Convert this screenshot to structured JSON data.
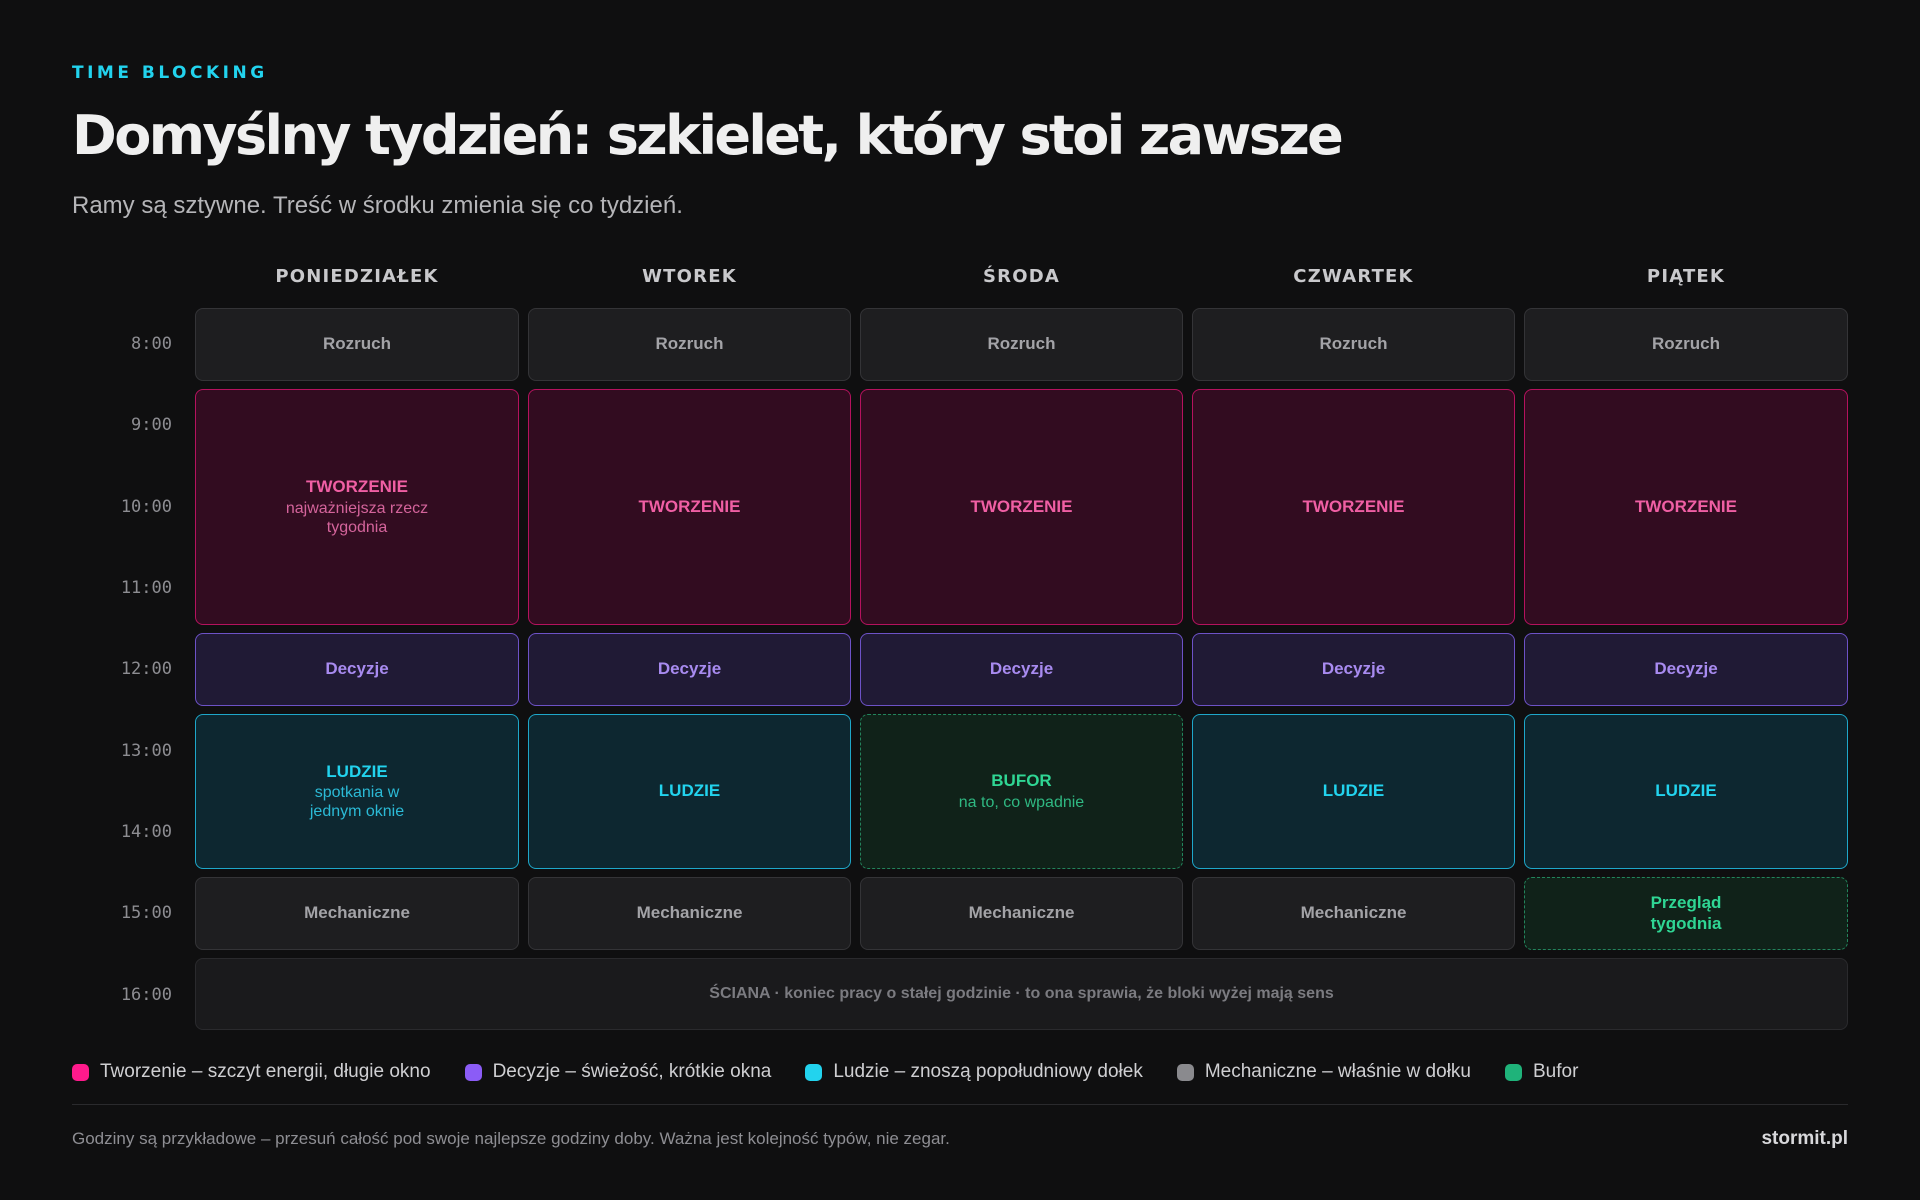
{
  "header": {
    "eyebrow": "TIME BLOCKING",
    "title": "Domyślny tydzień: szkielet, który stoi zawsze",
    "subtitle": "Ramy są sztywne. Treść w środku zmienia się co tydzień."
  },
  "days": [
    "PONIEDZIAŁEK",
    "WTOREK",
    "ŚRODA",
    "CZWARTEK",
    "PIĄTEK"
  ],
  "times": [
    "8:00",
    "9:00",
    "10:00",
    "11:00",
    "12:00",
    "13:00",
    "14:00",
    "15:00",
    "16:00"
  ],
  "schedule": {
    "rozruch": [
      "Rozruch",
      "Rozruch",
      "Rozruch",
      "Rozruch",
      "Rozruch"
    ],
    "tworzenie": [
      {
        "label": "TWORZENIE",
        "sub": "najważniejsza rzecz tygodnia"
      },
      {
        "label": "TWORZENIE",
        "sub": ""
      },
      {
        "label": "TWORZENIE",
        "sub": ""
      },
      {
        "label": "TWORZENIE",
        "sub": ""
      },
      {
        "label": "TWORZENIE",
        "sub": ""
      }
    ],
    "decyzje": [
      "Decyzje",
      "Decyzje",
      "Decyzje",
      "Decyzje",
      "Decyzje"
    ],
    "afternoon": [
      {
        "label": "LUDZIE",
        "sub": "spotkania w jednym oknie"
      },
      {
        "label": "LUDZIE",
        "sub": ""
      },
      {
        "label": "BUFOR",
        "sub": "na to, co wpadnie"
      },
      {
        "label": "LUDZIE",
        "sub": ""
      },
      {
        "label": "LUDZIE",
        "sub": ""
      }
    ],
    "late": [
      "Mechaniczne",
      "Mechaniczne",
      "Mechaniczne",
      "Mechaniczne",
      "Przegląd tygodnia"
    ],
    "wall": "ŚCIANA · koniec pracy o stałej godzinie · to ona sprawia, że bloki wyżej mają sens"
  },
  "legend": [
    {
      "label": "Tworzenie – szczyt energii, długie okno",
      "color": "#ff1a8c"
    },
    {
      "label": "Decyzje – świeżość, krótkie okna",
      "color": "#8b5cf6"
    },
    {
      "label": "Ludzie – znoszą popołudniowy dołek",
      "color": "#22d3ee"
    },
    {
      "label": "Mechaniczne – właśnie w dołku",
      "color": "#8a8a8e"
    },
    {
      "label": "Bufor",
      "color": "#1fb37a"
    }
  ],
  "footer": {
    "note": "Godziny są przykładowe – przesuń całość pod swoje najlepsze godziny doby. Ważna jest kolejność typów, nie zegar.",
    "brand": "stormit.pl"
  }
}
